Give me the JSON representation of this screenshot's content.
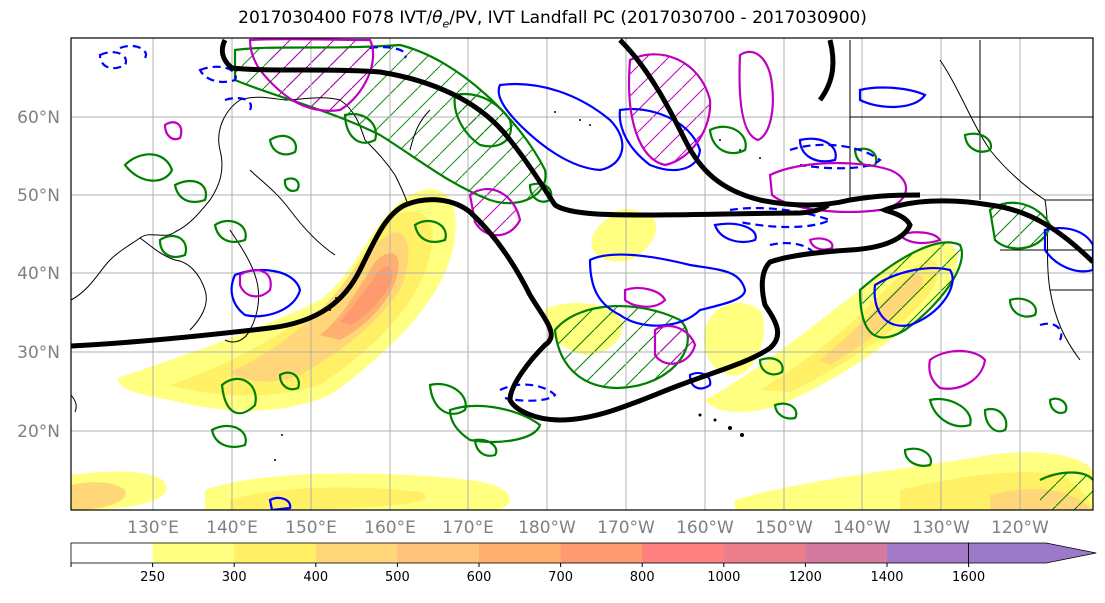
{
  "title": {
    "prefix": "2017030400 F078 IVT/",
    "theta": "θ",
    "sub": "e",
    "suffix": "/PV, IVT Landfall PC (2017030700 - 2017030900)"
  },
  "lat_labels": [
    "60°N",
    "50°N",
    "40°N",
    "30°N",
    "20°N"
  ],
  "lat_values": [
    60,
    50,
    40,
    30,
    20
  ],
  "lon_labels": [
    "130°E",
    "140°E",
    "150°E",
    "160°E",
    "170°E",
    "180°W",
    "170°W",
    "160°W",
    "150°W",
    "140°W",
    "130°W",
    "120°W"
  ],
  "lon_values": [
    130,
    140,
    150,
    160,
    170,
    180,
    190,
    200,
    210,
    220,
    230,
    240
  ],
  "colorbar": {
    "ticks": [
      "250",
      "300",
      "400",
      "500",
      "600",
      "700",
      "800",
      "1000",
      "1200",
      "1400",
      "1600"
    ],
    "colors": [
      "#ffffff",
      "#ffff80",
      "#fff065",
      "#ffd778",
      "#ffc27a",
      "#ffb070",
      "#ff9a70",
      "#ff8080",
      "#ec7d8a",
      "#d47aa0",
      "#a47ac7",
      "#9b7bc9"
    ]
  },
  "contour_colors": {
    "ivt_fill_light": "#ffff80",
    "ivt_fill_mid": "#ffd778",
    "ivt_fill_high": "#ff9a70",
    "theta_e": "#000000",
    "green": "#008000",
    "blue": "#0000ff",
    "magenta": "#c000c0"
  }
}
